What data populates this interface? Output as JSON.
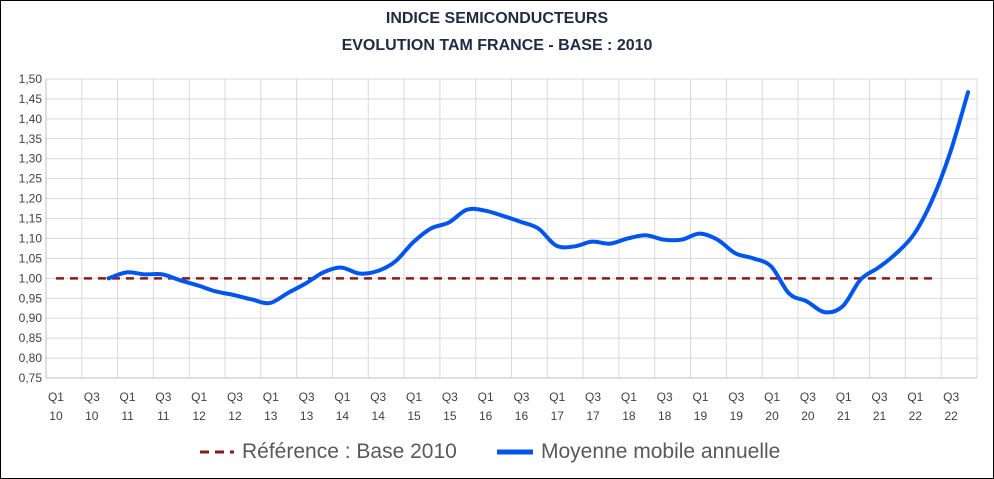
{
  "chart_data": {
    "type": "line",
    "title": "INDICE SEMICONDUCTEURS",
    "subtitle": "EVOLUTION TAM FRANCE - BASE : 2010",
    "xlabel": "",
    "ylabel": "",
    "ylim": [
      0.75,
      1.5
    ],
    "yticks": [
      "0,75",
      "0,80",
      "0,85",
      "0,90",
      "0,95",
      "1,00",
      "1,05",
      "1,10",
      "1,15",
      "1,20",
      "1,25",
      "1,30",
      "1,35",
      "1,40",
      "1,45",
      "1,50"
    ],
    "xtick_labels": [
      {
        "q": "Q1",
        "y": "10"
      },
      {
        "q": "Q3",
        "y": "10"
      },
      {
        "q": "Q1",
        "y": "11"
      },
      {
        "q": "Q3",
        "y": "11"
      },
      {
        "q": "Q1",
        "y": "12"
      },
      {
        "q": "Q3",
        "y": "12"
      },
      {
        "q": "Q1",
        "y": "13"
      },
      {
        "q": "Q3",
        "y": "13"
      },
      {
        "q": "Q1",
        "y": "14"
      },
      {
        "q": "Q3",
        "y": "14"
      },
      {
        "q": "Q1",
        "y": "15"
      },
      {
        "q": "Q3",
        "y": "15"
      },
      {
        "q": "Q1",
        "y": "16"
      },
      {
        "q": "Q3",
        "y": "16"
      },
      {
        "q": "Q1",
        "y": "17"
      },
      {
        "q": "Q3",
        "y": "17"
      },
      {
        "q": "Q1",
        "y": "18"
      },
      {
        "q": "Q3",
        "y": "18"
      },
      {
        "q": "Q1",
        "y": "19"
      },
      {
        "q": "Q3",
        "y": "19"
      },
      {
        "q": "Q1",
        "y": "20"
      },
      {
        "q": "Q3",
        "y": "20"
      },
      {
        "q": "Q1",
        "y": "21"
      },
      {
        "q": "Q3",
        "y": "21"
      },
      {
        "q": "Q1",
        "y": "22"
      },
      {
        "q": "Q3",
        "y": "22"
      }
    ],
    "grid": true,
    "legend_position": "bottom",
    "series": [
      {
        "name": "Référence : Base 2010",
        "style": "dashed",
        "color": "#8b1a1a",
        "x": [
          "Q1 10",
          "Q2 22"
        ],
        "values": [
          1.0,
          1.0
        ]
      },
      {
        "name": "Moyenne mobile annuelle",
        "style": "solid",
        "color": "#0055ee",
        "x": [
          "Q4 10",
          "Q1 11",
          "Q2 11",
          "Q3 11",
          "Q4 11",
          "Q1 12",
          "Q2 12",
          "Q3 12",
          "Q4 12",
          "Q1 13",
          "Q2 13",
          "Q3 13",
          "Q4 13",
          "Q1 14",
          "Q2 14",
          "Q3 14",
          "Q4 14",
          "Q1 15",
          "Q2 15",
          "Q3 15",
          "Q4 15",
          "Q1 16",
          "Q2 16",
          "Q3 16",
          "Q4 16",
          "Q1 17",
          "Q2 17",
          "Q3 17",
          "Q4 17",
          "Q1 18",
          "Q2 18",
          "Q3 18",
          "Q4 18",
          "Q1 19",
          "Q2 19",
          "Q3 19",
          "Q4 19",
          "Q1 20",
          "Q2 20",
          "Q3 20",
          "Q4 20",
          "Q1 21",
          "Q2 21",
          "Q3 21",
          "Q4 21",
          "Q1 22",
          "Q2 22",
          "Q3 22",
          "Q4 22"
        ],
        "values": [
          1.0,
          1.015,
          1.01,
          1.01,
          0.995,
          0.982,
          0.967,
          0.958,
          0.947,
          0.938,
          0.963,
          0.987,
          1.015,
          1.027,
          1.012,
          1.018,
          1.042,
          1.09,
          1.125,
          1.14,
          1.172,
          1.17,
          1.157,
          1.142,
          1.125,
          1.082,
          1.08,
          1.092,
          1.087,
          1.1,
          1.108,
          1.097,
          1.097,
          1.112,
          1.097,
          1.063,
          1.05,
          1.03,
          0.962,
          0.942,
          0.915,
          0.93,
          0.997,
          1.027,
          1.063,
          1.112,
          1.197,
          1.315,
          1.467
        ]
      }
    ]
  }
}
